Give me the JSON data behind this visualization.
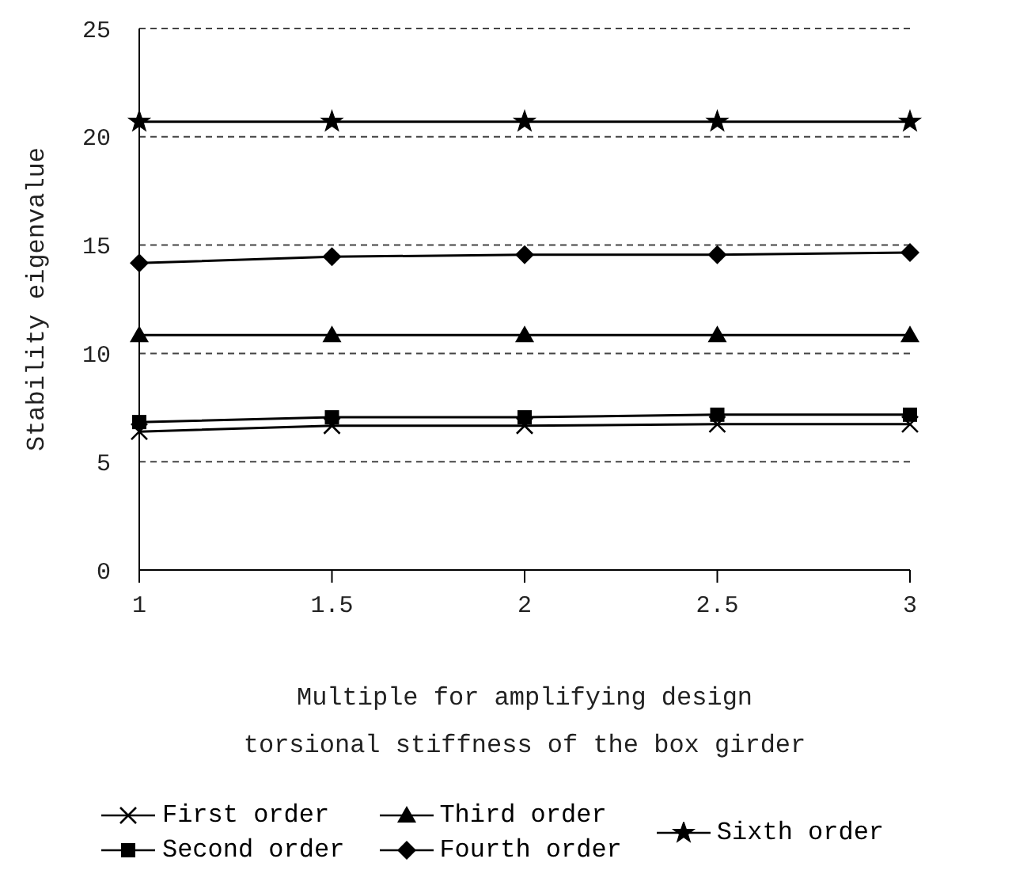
{
  "chart_data": {
    "type": "line",
    "xlabel": "Multiple for amplifying design torsional stiffness of the box girder",
    "ylabel": "Stability eigenvalue",
    "x": [
      1,
      1.5,
      2,
      2.5,
      3
    ],
    "xlim": [
      1,
      3
    ],
    "xticks": [
      1,
      1.5,
      2,
      2.5,
      3
    ],
    "ylim": [
      0,
      25
    ],
    "yticks": [
      0,
      5,
      10,
      15,
      20,
      25
    ],
    "grid": "y",
    "legend": "bottom",
    "line_style": "solid",
    "series": [
      {
        "name": "First order",
        "color": "#000000",
        "marker": "cross",
        "values": [
          6.39,
          6.66,
          6.66,
          6.73,
          6.73
        ]
      },
      {
        "name": "Second order",
        "color": "#000000",
        "marker": "square",
        "values": [
          6.83,
          7.05,
          7.05,
          7.17,
          7.17
        ]
      },
      {
        "name": "Third order",
        "color": "#000000",
        "marker": "triangle",
        "values": [
          10.85,
          10.85,
          10.85,
          10.85,
          10.85
        ]
      },
      {
        "name": "Fourth order",
        "color": "#000000",
        "marker": "diamond",
        "values": [
          14.17,
          14.46,
          14.56,
          14.56,
          14.66
        ]
      },
      {
        "name": "Sixth order",
        "color": "#000000",
        "marker": "star",
        "values": [
          20.7,
          20.7,
          20.7,
          20.7,
          20.7
        ]
      }
    ]
  }
}
